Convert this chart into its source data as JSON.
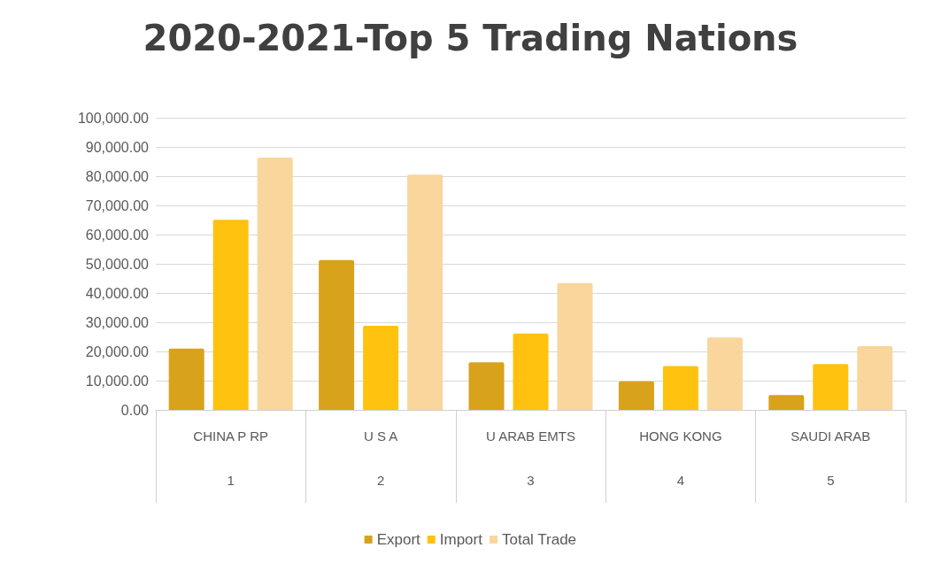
{
  "chart_data": {
    "type": "bar",
    "title": "2020-2021-Top 5 Trading Nations",
    "categories": [
      "CHINA P RP",
      "U S A",
      "U ARAB EMTS",
      "HONG KONG",
      "SAUDI ARAB"
    ],
    "series": [
      {
        "name": "Export",
        "color": "#d9a21b",
        "values": [
          21000,
          51300,
          16300,
          9800,
          5100
        ]
      },
      {
        "name": "Import",
        "color": "#ffc20e",
        "values": [
          65100,
          28800,
          26100,
          15000,
          15700
        ]
      },
      {
        "name": "Total Trade",
        "color": "#f9d69c",
        "values": [
          86400,
          80500,
          43400,
          24800,
          21800
        ]
      }
    ],
    "ylim": [
      0,
      100000
    ],
    "yticks": [
      {
        "value": 0,
        "label": "0.00"
      },
      {
        "value": 10000,
        "label": "10,000.00"
      },
      {
        "value": 20000,
        "label": "20,000.00"
      },
      {
        "value": 30000,
        "label": "30,000.00"
      },
      {
        "value": 40000,
        "label": "40,000.00"
      },
      {
        "value": 50000,
        "label": "50,000.00"
      },
      {
        "value": 60000,
        "label": "60,000.00"
      },
      {
        "value": 70000,
        "label": "70,000.00"
      },
      {
        "value": 80000,
        "label": "80,000.00"
      },
      {
        "value": 90000,
        "label": "90,000.00"
      },
      {
        "value": 100000,
        "label": "100,000.00"
      }
    ],
    "annotations": [
      "1",
      "2",
      "3",
      "4",
      "5"
    ],
    "grid": "y",
    "legend": "bottom"
  }
}
